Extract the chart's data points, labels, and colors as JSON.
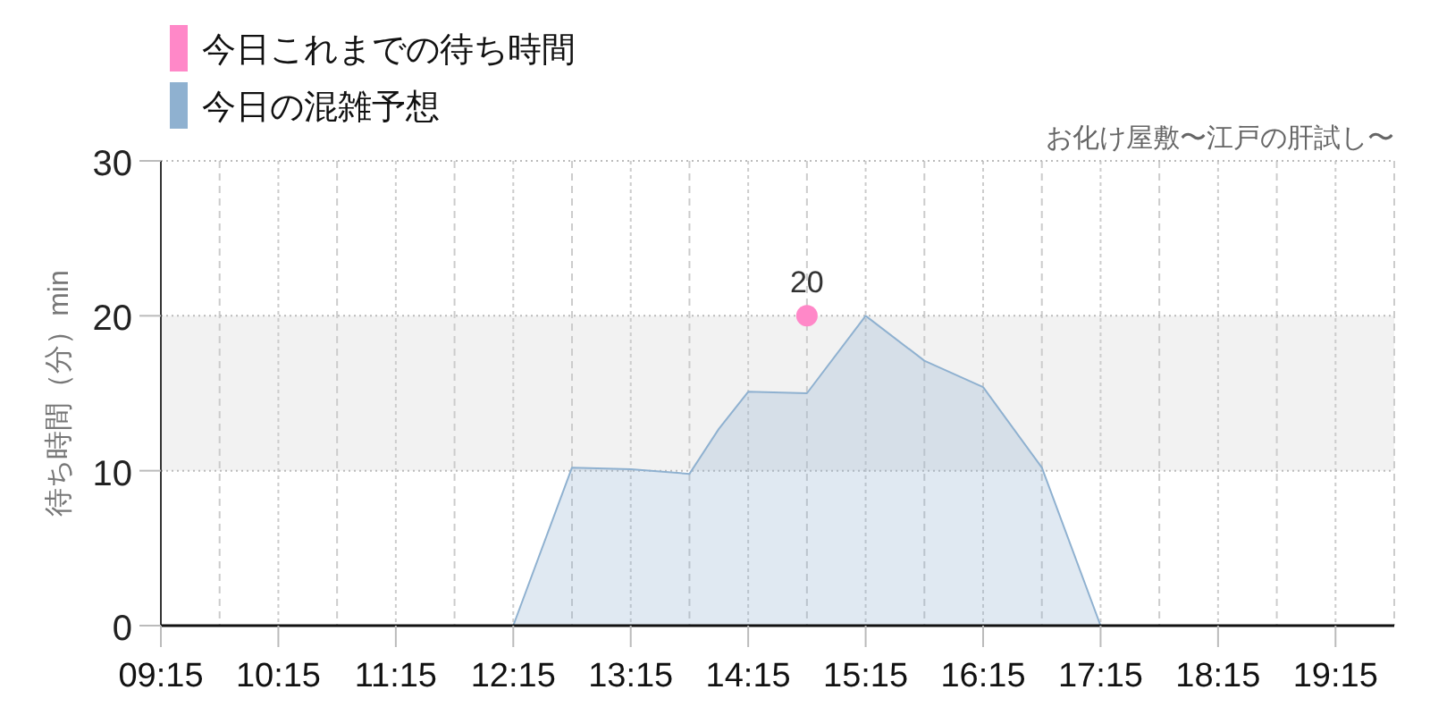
{
  "chart_data": {
    "type": "area",
    "subtitle": "お化け屋敷〜江戸の肝試し〜",
    "ylabel": "待ち時間（分）min",
    "series": [
      {
        "name": "今日これまでの待ち時間",
        "type": "scatter",
        "marker": "circle",
        "color": "#ff88c8",
        "x": [
          14.75
        ],
        "values": [
          20
        ],
        "value_labels": [
          "20"
        ]
      },
      {
        "name": "今日の混雑予想",
        "color": "#8fb1d0",
        "x": [
          9.25,
          9.75,
          10.25,
          10.75,
          11.25,
          11.75,
          12.0,
          12.25,
          12.75,
          13.25,
          13.75,
          14.0,
          14.25,
          14.75,
          15.25,
          15.75,
          16.25,
          16.75,
          17.25,
          17.5,
          17.75,
          18.25,
          18.75,
          19.25,
          19.75
        ],
        "values": [
          0,
          0,
          0,
          0,
          0,
          0,
          0,
          0,
          10.2,
          10.1,
          9.8,
          12.7,
          15.1,
          15,
          20,
          17.1,
          15.4,
          10.2,
          0,
          0,
          0,
          0,
          0,
          0,
          0
        ]
      }
    ],
    "xlim": [
      9.25,
      19.75
    ],
    "xticks": [
      {
        "value": 9.25,
        "label": "09:15"
      },
      {
        "value": 9.75,
        "label": null
      },
      {
        "value": 10.25,
        "label": "10:15"
      },
      {
        "value": 10.75,
        "label": null
      },
      {
        "value": 11.25,
        "label": "11:15"
      },
      {
        "value": 11.75,
        "label": null
      },
      {
        "value": 12.25,
        "label": "12:15"
      },
      {
        "value": 12.75,
        "label": null
      },
      {
        "value": 13.25,
        "label": "13:15"
      },
      {
        "value": 13.75,
        "label": null
      },
      {
        "value": 14.25,
        "label": "14:15"
      },
      {
        "value": 14.75,
        "label": null
      },
      {
        "value": 15.25,
        "label": "15:15"
      },
      {
        "value": 15.75,
        "label": null
      },
      {
        "value": 16.25,
        "label": "16:15"
      },
      {
        "value": 16.75,
        "label": null
      },
      {
        "value": 17.25,
        "label": "17:15"
      },
      {
        "value": 17.75,
        "label": null
      },
      {
        "value": 18.25,
        "label": "18:15"
      },
      {
        "value": 18.75,
        "label": null
      },
      {
        "value": 19.25,
        "label": "19:15"
      },
      {
        "value": 19.75,
        "label": null
      }
    ],
    "ylim": [
      0,
      30
    ],
    "yticks": [
      0,
      10,
      20,
      30
    ],
    "bands": [
      {
        "axis": "y",
        "from": 10,
        "to": 20,
        "color": "#f2f2f2"
      }
    ],
    "grid": true,
    "legend": "top left"
  }
}
